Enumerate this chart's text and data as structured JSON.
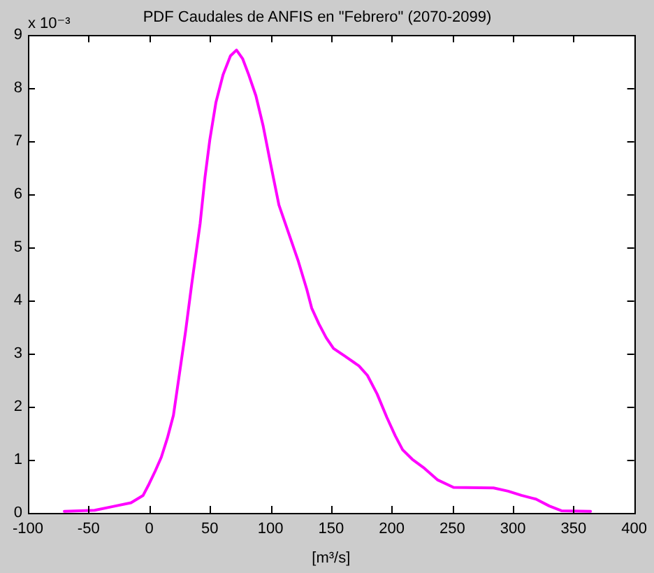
{
  "chart_data": {
    "type": "line",
    "title": "PDF Caudales de ANFIS en \"Febrero\" (2070-2099)",
    "xlabel": "[m³/s]",
    "annotations": [
      "x 10⁻³"
    ],
    "x": [
      -70,
      -45,
      -30,
      -15,
      -5,
      0,
      5,
      10,
      15,
      20,
      25,
      30,
      35,
      42,
      46,
      50,
      55,
      61,
      67,
      72,
      77,
      82,
      88,
      94,
      100,
      107,
      115,
      123,
      130,
      134,
      140,
      146,
      152,
      161,
      173,
      180,
      188,
      196,
      203,
      209,
      217,
      227,
      238,
      251,
      284,
      296,
      307,
      319,
      330,
      340,
      364
    ],
    "values": [
      0.03,
      0.05,
      0.12,
      0.19,
      0.33,
      0.55,
      0.79,
      1.05,
      1.41,
      1.84,
      2.63,
      3.42,
      4.3,
      5.45,
      6.32,
      7.03,
      7.73,
      8.26,
      8.61,
      8.72,
      8.56,
      8.26,
      7.86,
      7.29,
      6.59,
      5.8,
      5.27,
      4.74,
      4.21,
      3.86,
      3.56,
      3.3,
      3.1,
      2.96,
      2.77,
      2.59,
      2.24,
      1.8,
      1.45,
      1.19,
      1.01,
      0.84,
      0.62,
      0.48,
      0.47,
      0.41,
      0.33,
      0.26,
      0.13,
      0.04,
      0.03
    ],
    "color": "#ff00ff",
    "xlim": [
      -100,
      400
    ],
    "xticks": [
      -100,
      -50,
      0,
      50,
      100,
      150,
      200,
      250,
      300,
      350,
      400
    ],
    "ylim": [
      0,
      9
    ],
    "yticks": [
      0,
      1,
      2,
      3,
      4,
      5,
      6,
      7,
      8,
      9
    ],
    "grid": false,
    "legend": false,
    "marker": "none",
    "line_style": "solid"
  }
}
